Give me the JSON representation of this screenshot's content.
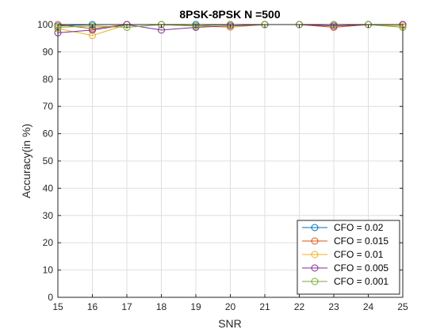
{
  "chart_data": {
    "type": "line",
    "title": "8PSK-8PSK N =500",
    "xlabel": "SNR",
    "ylabel": "Accuracy(in %)",
    "xlim": [
      15,
      25
    ],
    "ylim": [
      0,
      100
    ],
    "xticks": [
      15,
      16,
      17,
      18,
      19,
      20,
      21,
      22,
      23,
      24,
      25
    ],
    "yticks": [
      0,
      10,
      20,
      30,
      40,
      50,
      60,
      70,
      80,
      90,
      100
    ],
    "grid": true,
    "legend_position": "bottom-right",
    "x": [
      15,
      16,
      17,
      18,
      19,
      20,
      21,
      22,
      23,
      24,
      25
    ],
    "series": [
      {
        "name": "CFO = 0.02",
        "color": "#0072BD",
        "values": [
          99.5,
          100,
          100,
          100,
          100,
          100,
          100,
          100,
          100,
          100,
          100
        ]
      },
      {
        "name": "CFO = 0.015",
        "color": "#D95319",
        "values": [
          100,
          98.5,
          100,
          100,
          99.5,
          100,
          100,
          100,
          99,
          100,
          100
        ]
      },
      {
        "name": "CFO = 0.01",
        "color": "#EDB120",
        "values": [
          98.5,
          96,
          100,
          100,
          99.5,
          99,
          100,
          100,
          100,
          100,
          99.5
        ]
      },
      {
        "name": "CFO = 0.005",
        "color": "#7E2F8E",
        "values": [
          97,
          98,
          100,
          98,
          99,
          99.5,
          100,
          100,
          99.5,
          100,
          100
        ]
      },
      {
        "name": "CFO = 0.001",
        "color": "#77AC30",
        "values": [
          99,
          99.5,
          99,
          100,
          99.5,
          100,
          100,
          100,
          100,
          100,
          99
        ]
      }
    ]
  }
}
